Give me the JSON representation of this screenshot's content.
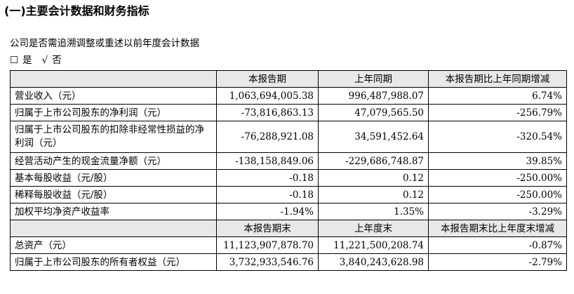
{
  "section_title": "(一)主要会计数据和财务指标",
  "question": "公司是否需追溯调整或重述以前年度会计数据",
  "choice": {
    "box": "☐",
    "yes": "是",
    "check": "√",
    "no": "否"
  },
  "header1": [
    "",
    "本报告期",
    "上年同期",
    "本报告期比上年同期增减"
  ],
  "rows1": [
    {
      "label": "营业收入（元）",
      "current": "1,063,694,005.38",
      "prior": "996,487,988.07",
      "change": "6.74%"
    },
    {
      "label": "归属于上市公司股东的净利润（元）",
      "current": "-73,816,863.13",
      "prior": "47,079,565.50",
      "change": "-256.79%"
    },
    {
      "label": "归属于上市公司股东的扣除非经常性损益的净利润（元）",
      "current": "-76,288,921.08",
      "prior": "34,591,452.64",
      "change": "-320.54%"
    },
    {
      "label": "经营活动产生的现金流量净额（元）",
      "current": "-138,158,849.06",
      "prior": "-229,686,748.87",
      "change": "39.85%"
    },
    {
      "label": "基本每股收益（元/股）",
      "current": "-0.18",
      "prior": "0.12",
      "change": "-250.00%"
    },
    {
      "label": "稀释每股收益（元/股）",
      "current": "-0.18",
      "prior": "0.12",
      "change": "-250.00%"
    },
    {
      "label": "加权平均净资产收益率",
      "current": "-1.94%",
      "prior": "1.35%",
      "change": "-3.29%"
    }
  ],
  "header2": [
    "",
    "本报告期末",
    "上年度末",
    "本报告期末比上年度末增减"
  ],
  "rows2": [
    {
      "label": "总资产（元）",
      "current": "11,123,907,878.70",
      "prior": "11,221,500,208.74",
      "change": "-0.87%"
    },
    {
      "label": "归属于上市公司股东的所有者权益（元）",
      "current": "3,732,933,546.76",
      "prior": "3,840,243,628.98",
      "change": "-2.79%"
    }
  ]
}
